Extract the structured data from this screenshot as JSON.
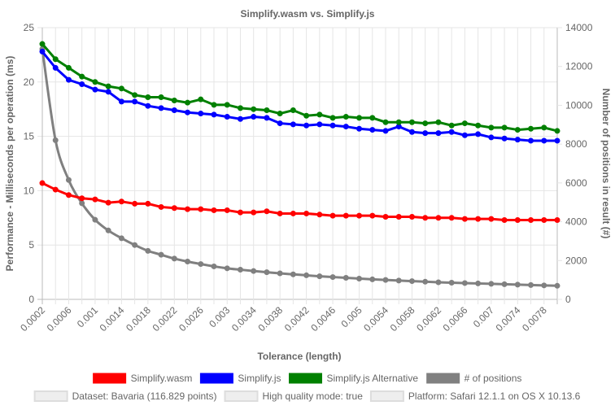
{
  "chart_data": {
    "type": "line",
    "title": "Simplify.wasm vs. Simplify.js",
    "xlabel": "Tolerance (length)",
    "ylabel_left": "Performance - Milliseconds per operation (ms)",
    "ylabel_right": "Number of positions in result (#)",
    "y_left_range": [
      0,
      25
    ],
    "y_left_ticks": [
      "0",
      "5",
      "10",
      "15",
      "20",
      "25"
    ],
    "y_right_range": [
      0,
      14000
    ],
    "y_right_ticks": [
      "0",
      "2000",
      "4000",
      "6000",
      "8000",
      "10000",
      "12000",
      "14000"
    ],
    "grid": true,
    "legend_position": "bottom",
    "x": [
      0.0002,
      0.0004,
      0.0006,
      0.0008,
      0.001,
      0.0012,
      0.0014,
      0.0016,
      0.0018,
      0.002,
      0.0022,
      0.0024,
      0.0026,
      0.0028,
      0.003,
      0.0032,
      0.0034,
      0.0036,
      0.0038,
      0.004,
      0.0042,
      0.0044,
      0.0046,
      0.0048,
      0.005,
      0.0052,
      0.0054,
      0.0056,
      0.0058,
      0.006,
      0.0062,
      0.0064,
      0.0066,
      0.0068,
      0.007,
      0.0072,
      0.0074,
      0.0076,
      0.0078,
      0.008
    ],
    "x_tick_labels": [
      "0.0002",
      "0.0006",
      "0.001",
      "0.0014",
      "0.0018",
      "0.0022",
      "0.0026",
      "0.003",
      "0.0034",
      "0.0038",
      "0.0042",
      "0.0046",
      "0.005",
      "0.0054",
      "0.0058",
      "0.0062",
      "0.0066",
      "0.007",
      "0.0074",
      "0.0078"
    ],
    "series": [
      {
        "name": "Simplify.wasm",
        "color": "#ff0000",
        "axis": "left",
        "values": [
          10.7,
          10.1,
          9.6,
          9.3,
          9.2,
          8.9,
          9.0,
          8.8,
          8.8,
          8.5,
          8.4,
          8.3,
          8.3,
          8.2,
          8.2,
          8.0,
          8.0,
          8.1,
          7.9,
          7.9,
          7.9,
          7.8,
          7.7,
          7.7,
          7.7,
          7.7,
          7.6,
          7.6,
          7.6,
          7.5,
          7.5,
          7.5,
          7.4,
          7.4,
          7.4,
          7.3,
          7.3,
          7.3,
          7.3,
          7.3
        ]
      },
      {
        "name": "Simplify.js",
        "color": "#0000ff",
        "axis": "left",
        "values": [
          22.8,
          21.3,
          20.2,
          19.8,
          19.3,
          19.1,
          18.2,
          18.2,
          17.8,
          17.6,
          17.4,
          17.2,
          17.1,
          17.0,
          16.8,
          16.6,
          16.8,
          16.7,
          16.2,
          16.1,
          16.0,
          16.1,
          16.0,
          15.9,
          15.7,
          15.6,
          15.5,
          15.9,
          15.4,
          15.3,
          15.3,
          15.4,
          15.1,
          15.2,
          14.9,
          14.8,
          14.7,
          14.6,
          14.6,
          14.6
        ]
      },
      {
        "name": "Simplify.js Alternative",
        "color": "#008000",
        "axis": "left",
        "values": [
          23.5,
          22.1,
          21.3,
          20.5,
          20.0,
          19.6,
          19.4,
          18.8,
          18.6,
          18.6,
          18.3,
          18.1,
          18.4,
          17.9,
          17.9,
          17.6,
          17.5,
          17.4,
          17.1,
          17.4,
          16.9,
          17.0,
          16.7,
          16.8,
          16.7,
          16.7,
          16.3,
          16.3,
          16.3,
          16.2,
          16.3,
          16.0,
          16.2,
          16.0,
          15.8,
          15.8,
          15.6,
          15.7,
          15.8,
          15.5
        ]
      },
      {
        "name": "# of positions",
        "color": "#808080",
        "axis": "right",
        "values": [
          12900,
          8200,
          6150,
          4950,
          4100,
          3550,
          3150,
          2800,
          2500,
          2300,
          2100,
          1950,
          1820,
          1700,
          1600,
          1530,
          1460,
          1400,
          1340,
          1290,
          1240,
          1190,
          1150,
          1110,
          1070,
          1030,
          1000,
          970,
          940,
          910,
          880,
          860,
          840,
          820,
          800,
          780,
          760,
          740,
          720,
          700
        ]
      }
    ],
    "extra_legend": [
      "Dataset: Bavaria (116.829 points)",
      "High quality mode: true",
      "Platform: Safari 12.1.1 on OS X 10.13.6"
    ]
  }
}
